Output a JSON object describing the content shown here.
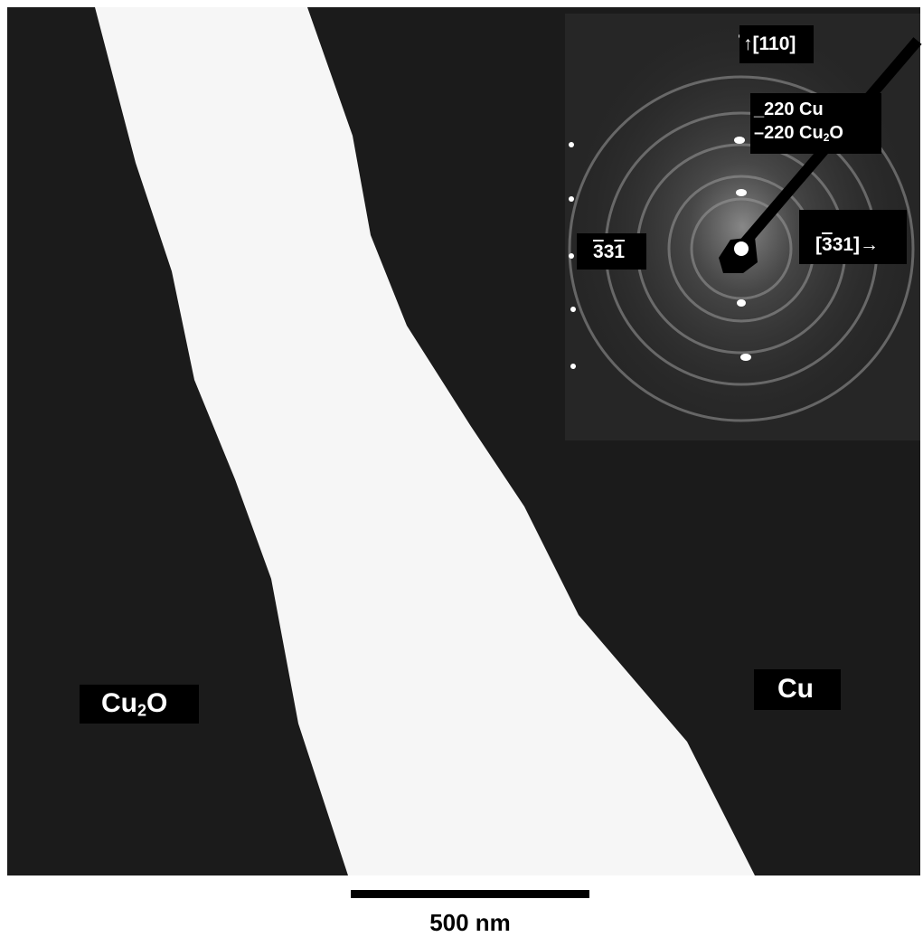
{
  "labels": {
    "cu2o": {
      "text": "Cu",
      "sub": "2",
      "tail": "O"
    },
    "cu": "Cu",
    "inset": {
      "direction_up": "↑[110]",
      "ring_cu": "_220 Cu",
      "ring_cu2o": {
        "text": "–220 Cu",
        "sub": "2",
        "tail": "O"
      },
      "spot": [
        "3",
        "3",
        "1"
      ],
      "direction_right": [
        "[",
        "3",
        "31]→"
      ]
    }
  },
  "scale_bar": {
    "label": "500 nm"
  }
}
